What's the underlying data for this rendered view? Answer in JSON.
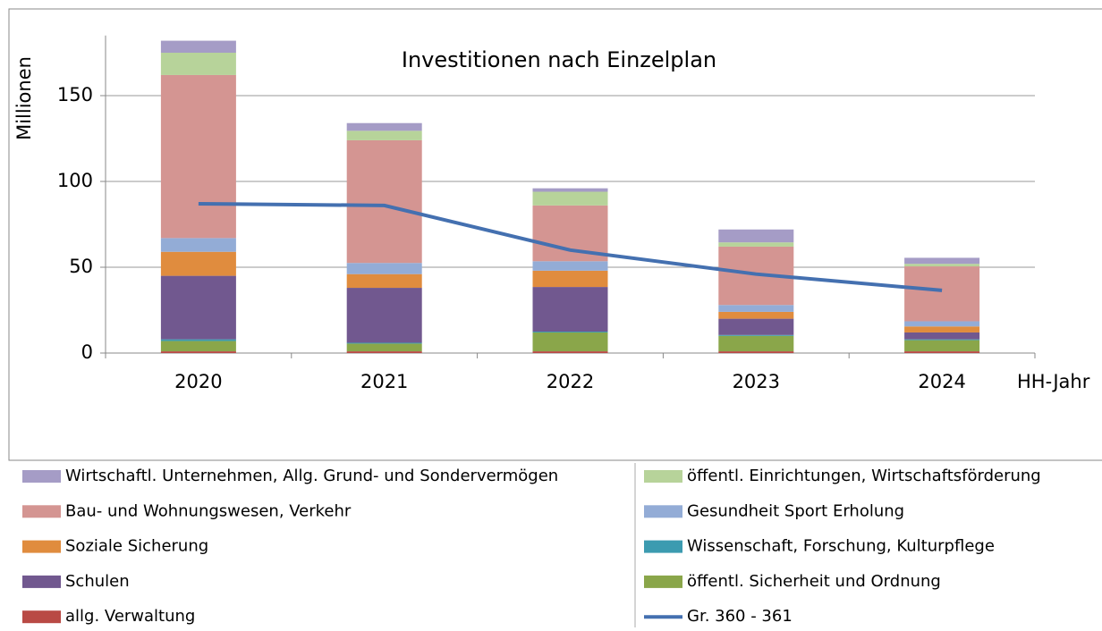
{
  "chart_data": {
    "type": "bar",
    "stacked": true,
    "title": "Investitionen nach Einzelplan",
    "y_label": "Millionen",
    "x_label": "HH-Jahr",
    "categories": [
      "2020",
      "2021",
      "2022",
      "2023",
      "2024"
    ],
    "ylim": [
      0,
      185
    ],
    "yticks": [
      0,
      50,
      100,
      150
    ],
    "grid": true,
    "series": [
      {
        "name": "allg. Verwaltung",
        "color": "#b94a45",
        "values": [
          1,
          1,
          1,
          1,
          1
        ]
      },
      {
        "name": "öffentl. Sicherheit und Ordnung",
        "color": "#8aa64a",
        "values": [
          6,
          4.5,
          11,
          9,
          6.5
        ]
      },
      {
        "name": "Wissenschaft, Forschung, Kulturpflege",
        "color": "#3c9bb0",
        "values": [
          1,
          0.5,
          0.5,
          0.5,
          0.5
        ]
      },
      {
        "name": "Schulen",
        "color": "#71588f",
        "values": [
          37,
          32,
          26,
          9.5,
          4
        ]
      },
      {
        "name": "Soziale Sicherung",
        "color": "#e08c3e",
        "values": [
          14,
          8,
          9.5,
          4,
          3.5
        ]
      },
      {
        "name": "Gesundheit Sport Erholung",
        "color": "#93acd6",
        "values": [
          8,
          6.5,
          5.5,
          4,
          3
        ]
      },
      {
        "name": "Bau- und Wohnungswesen, Verkehr",
        "color": "#d49592",
        "values": [
          95,
          71.5,
          32.5,
          34,
          32
        ]
      },
      {
        "name": "öffentl. Einrichtungen, Wirtschaftsförderung",
        "color": "#b7d39a",
        "values": [
          13,
          5.5,
          8,
          2.5,
          1.5
        ]
      },
      {
        "name": "Wirtschaftl. Unternehmen, Allg. Grund- und Sondervermögen",
        "color": "#a59cc6",
        "values": [
          7,
          4.5,
          2,
          7.5,
          3.5
        ]
      },
      {
        "name": "Gr. 360 - 361",
        "color": "#4470b0",
        "type": "line",
        "values": [
          87,
          86,
          60,
          46,
          36.5
        ]
      }
    ]
  }
}
